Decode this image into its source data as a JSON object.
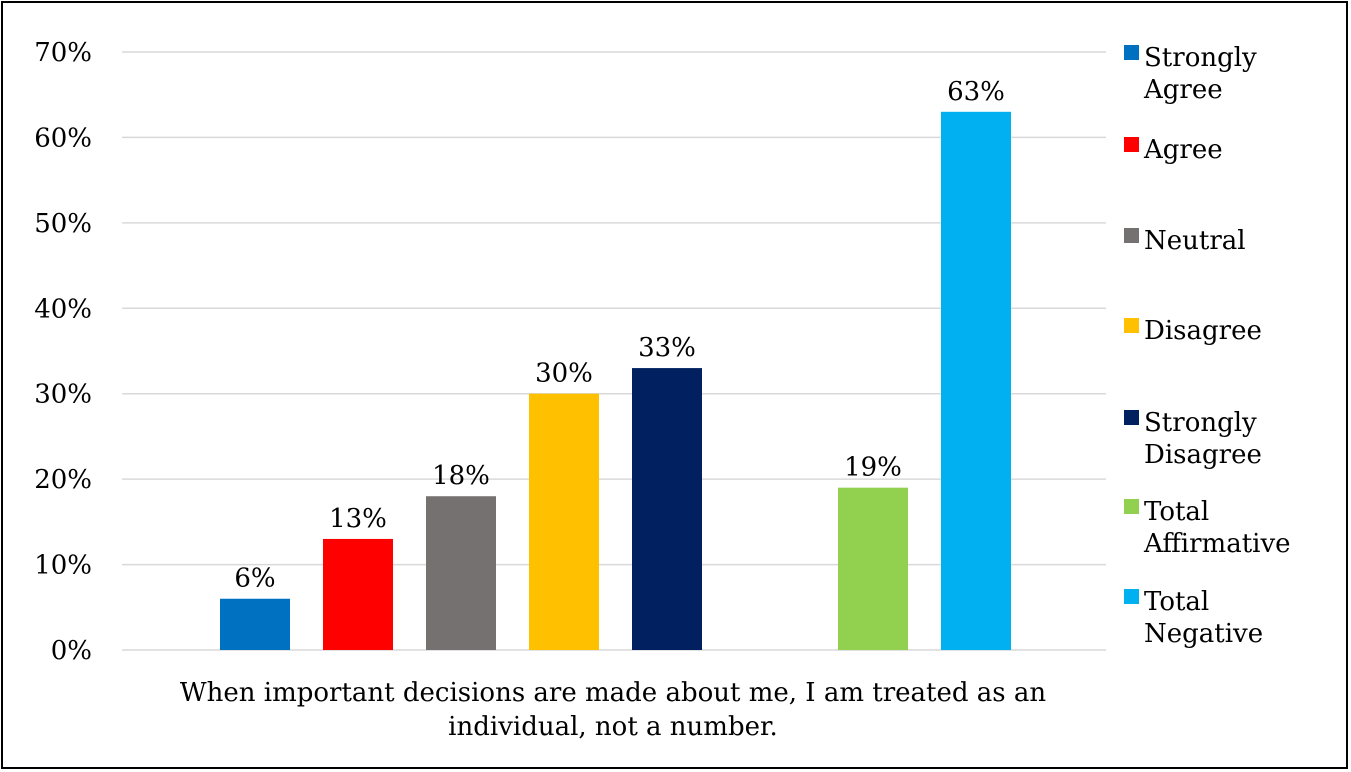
{
  "chart_data": {
    "type": "bar",
    "categories": [
      "When important decisions are made about me, I am treated as an individual, not a number."
    ],
    "xlabel": "When important decisions are made about me, I am treated as an individual, not a number.",
    "ylim": [
      0,
      70
    ],
    "y_ticks": [
      "0%",
      "10%",
      "20%",
      "30%",
      "40%",
      "50%",
      "60%",
      "70%"
    ],
    "grid": true,
    "legend_position": "right",
    "series": [
      {
        "name": "Strongly Agree",
        "values": [
          6
        ],
        "label": "6%",
        "color": "#0070C0"
      },
      {
        "name": "Agree",
        "values": [
          13
        ],
        "label": "13%",
        "color": "#FF0000"
      },
      {
        "name": "Neutral",
        "values": [
          18
        ],
        "label": "18%",
        "color": "#767171"
      },
      {
        "name": "Disagree",
        "values": [
          30
        ],
        "label": "30%",
        "color": "#FFC000"
      },
      {
        "name": "Strongly Disagree",
        "values": [
          33
        ],
        "label": "33%",
        "color": "#002060"
      },
      {
        "name": "Total Affirmative",
        "values": [
          19
        ],
        "label": "19%",
        "color": "#92D050"
      },
      {
        "name": "Total Negative",
        "values": [
          63
        ],
        "label": "63%",
        "color": "#00B0F0"
      }
    ]
  }
}
